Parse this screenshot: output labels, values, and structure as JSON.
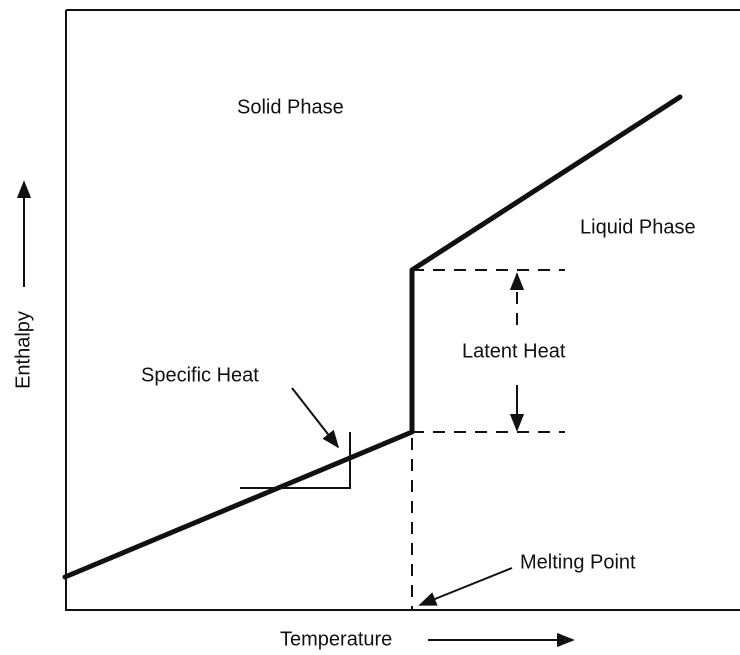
{
  "diagram": {
    "x_axis_label": "Temperature",
    "y_axis_label": "Enthalpy",
    "regions": [
      "Solid Phase",
      "Liquid Phase"
    ],
    "annotations": [
      "Specific Heat",
      "Latent Heat",
      "Melting Point"
    ]
  }
}
